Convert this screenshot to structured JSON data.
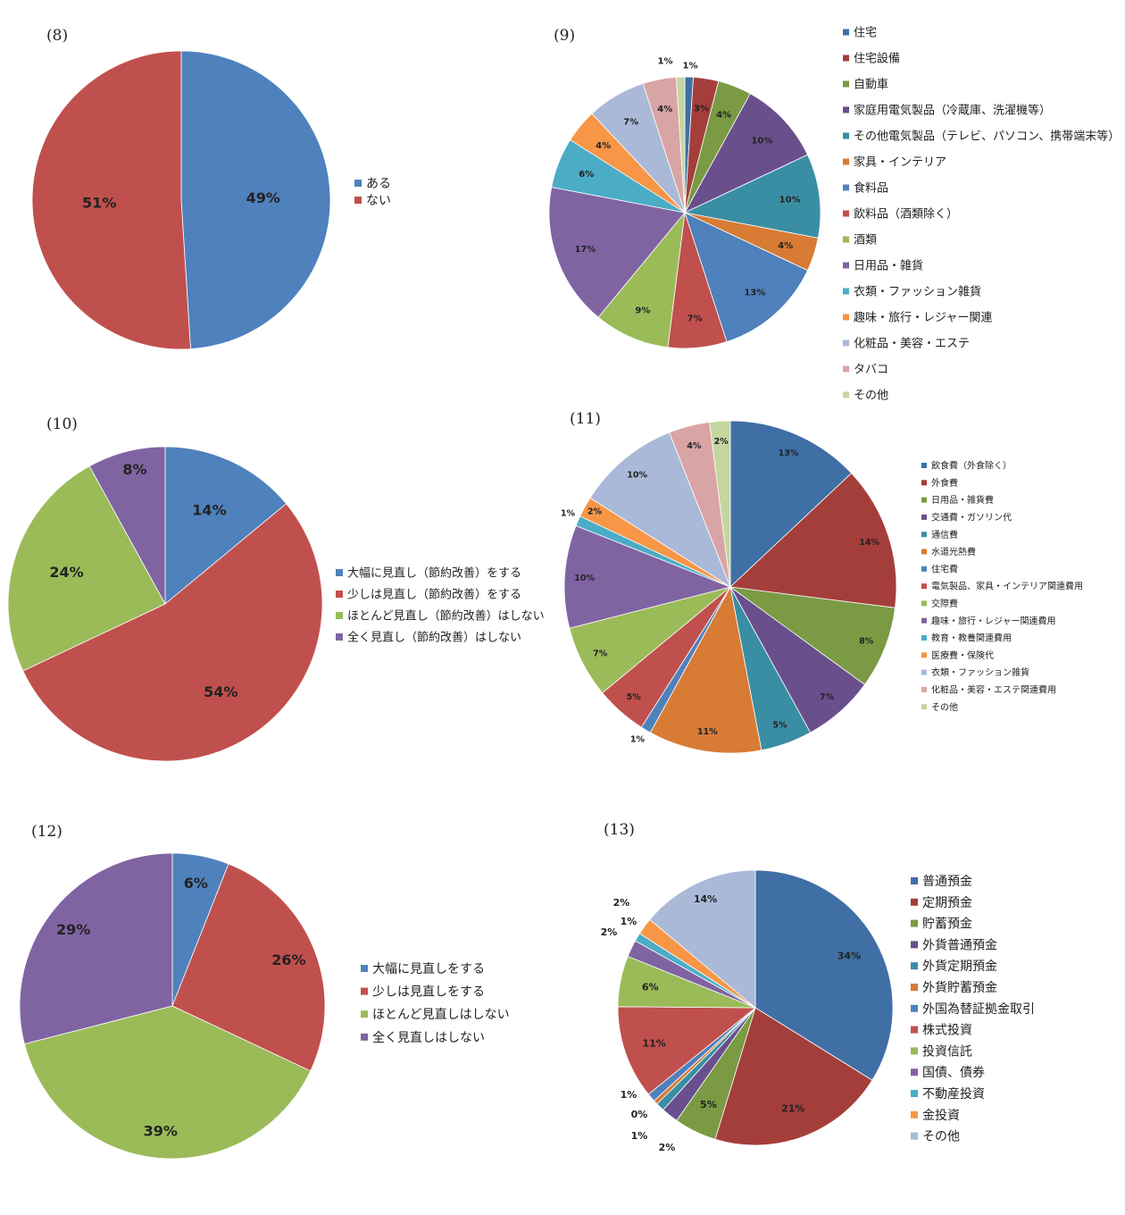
{
  "chart_data": [
    {
      "type": "pie",
      "title": "(8)",
      "categories": [
        "ある",
        "ない"
      ],
      "values": [
        49,
        51
      ],
      "labels": [
        "49%",
        "51%"
      ],
      "colors": [
        "#4F81BD",
        "#C0504D"
      ],
      "legend_position": "right"
    },
    {
      "type": "pie",
      "title": "(9)",
      "categories": [
        "住宅",
        "住宅設備",
        "自動車",
        "家庭用電気製品（冷蔵庫、洗濯機等）",
        "その他電気製品（テレビ、パソコン、携帯端末等）",
        "家具・インテリア",
        "食料品",
        "飲料品（酒類除く）",
        "酒類",
        "日用品・雑貨",
        "衣類・ファッション雑貨",
        "趣味・旅行・レジャー関連",
        "化粧品・美容・エステ",
        "タバコ",
        "その他"
      ],
      "values": [
        1,
        3,
        4,
        10,
        10,
        4,
        13,
        7,
        9,
        17,
        6,
        4,
        7,
        4,
        1
      ],
      "labels": [
        "1%",
        "3%",
        "4%",
        "10%",
        "10%",
        "4%",
        "13%",
        "7%",
        "9%",
        "17%",
        "6%",
        "4%",
        "7%",
        "4%",
        "1%"
      ],
      "colors": [
        "#3F6FA5",
        "#A43E3B",
        "#7A9A43",
        "#6A4F8D",
        "#3A8EA4",
        "#D77B35",
        "#4F81BD",
        "#C0504D",
        "#9BBB59",
        "#8064A2",
        "#4BACC6",
        "#F79646",
        "#A9B9D7",
        "#D9A5A4",
        "#C4D6A0"
      ],
      "legend_position": "right"
    },
    {
      "type": "pie",
      "title": "(10)",
      "categories": [
        "大幅に見直し（節約改善）をする",
        "少しは見直し（節約改善）をする",
        "ほとんど見直し（節約改善）はしない",
        "全く見直し（節約改善）はしない"
      ],
      "values": [
        14,
        54,
        24,
        8
      ],
      "labels": [
        "14%",
        "54%",
        "24%",
        "8%"
      ],
      "colors": [
        "#4F81BD",
        "#C0504D",
        "#9BBB59",
        "#8064A2"
      ],
      "legend_position": "right"
    },
    {
      "type": "pie",
      "title": "(11)",
      "categories": [
        "飲食費（外食除く）",
        "外食費",
        "日用品・雑貨費",
        "交通費・ガソリン代",
        "通信費",
        "水道光熱費",
        "住宅費",
        "電気製品、家具・インテリア関連費用",
        "交際費",
        "趣味・旅行・レジャー関連費用",
        "教育・教養関連費用",
        "医療費・保険代",
        "衣類・ファッション雑貨",
        "化粧品・美容・エステ関連費用",
        "その他"
      ],
      "values": [
        13,
        14,
        8,
        7,
        5,
        11,
        1,
        5,
        7,
        10,
        1,
        2,
        10,
        4,
        2
      ],
      "labels": [
        "13%",
        "14%",
        "8%",
        "7%",
        "5%",
        "11%",
        "1%",
        "5%",
        "7%",
        "10%",
        "1%",
        "2%",
        "10%",
        "4%",
        "2%"
      ],
      "colors": [
        "#3F6FA5",
        "#A43E3B",
        "#7A9A43",
        "#6A4F8D",
        "#3A8EA4",
        "#D77B35",
        "#4F81BD",
        "#C0504D",
        "#9BBB59",
        "#8064A2",
        "#4BACC6",
        "#F79646",
        "#A9B9D7",
        "#D9A5A4",
        "#C4D6A0"
      ],
      "legend_position": "right"
    },
    {
      "type": "pie",
      "title": "(12)",
      "categories": [
        "大幅に見直しをする",
        "少しは見直しをする",
        "ほとんど見直しはしない",
        "全く見直しはしない"
      ],
      "values": [
        6,
        26,
        39,
        29
      ],
      "labels": [
        "6%",
        "26%",
        "39%",
        "29%"
      ],
      "colors": [
        "#4F81BD",
        "#C0504D",
        "#9BBB59",
        "#8064A2"
      ],
      "legend_position": "right"
    },
    {
      "type": "pie",
      "title": "(13)",
      "categories": [
        "普通預金",
        "定期預金",
        "貯蓄預金",
        "外貨普通預金",
        "外貨定期預金",
        "外貨貯蓄預金",
        "外国為替証拠金取引",
        "株式投資",
        "投資信託",
        "国債、債券",
        "不動産投資",
        "金投資",
        "その他"
      ],
      "values": [
        34,
        21,
        5,
        2,
        1,
        0.5,
        1,
        11,
        6,
        2,
        1,
        2,
        14
      ],
      "labels": [
        "34%",
        "21%",
        "5%",
        "2%",
        "1%",
        "0%",
        "1%",
        "11%",
        "6%",
        "2%",
        "1%",
        "2%",
        "14%"
      ],
      "colors": [
        "#3F6FA5",
        "#A43E3B",
        "#7A9A43",
        "#6A4F8D",
        "#3A8EA4",
        "#D77B35",
        "#4F81BD",
        "#C0504D",
        "#9BBB59",
        "#8064A2",
        "#4BACC6",
        "#F79646",
        "#A9B9D7"
      ],
      "legend_position": "right"
    }
  ]
}
